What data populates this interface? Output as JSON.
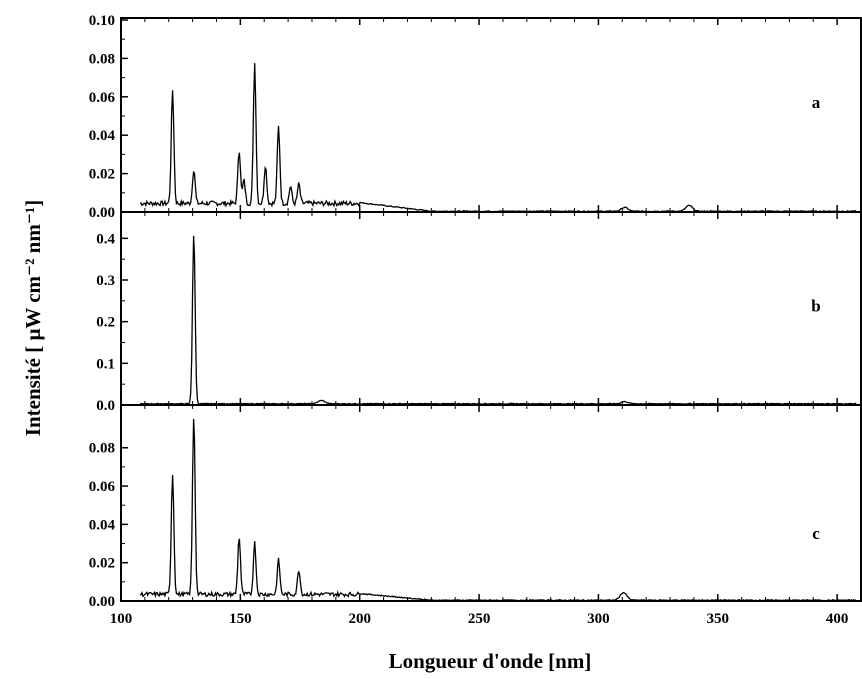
{
  "chart_data": {
    "type": "line",
    "xlabel": "Longueur d'onde [nm]",
    "ylabel": "Intensité [ μW cm⁻² nm⁻¹]",
    "xlim": [
      100,
      410
    ],
    "x_ticks": [
      "100",
      "150",
      "200",
      "250",
      "300",
      "350",
      "400"
    ],
    "line_color": "#000000",
    "panels": [
      {
        "label": "a",
        "ylim": [
          0,
          0.1
        ],
        "y_ticks": [
          "0.00",
          "0.02",
          "0.04",
          "0.06",
          "0.08",
          "0.10"
        ],
        "peaks": [
          {
            "x": 121.6,
            "y": 0.059
          },
          {
            "x": 130.5,
            "y": 0.018
          },
          {
            "x": 149.5,
            "y": 0.028
          },
          {
            "x": 151.5,
            "y": 0.012
          },
          {
            "x": 156.0,
            "y": 0.073
          },
          {
            "x": 160.5,
            "y": 0.02
          },
          {
            "x": 166.0,
            "y": 0.04
          },
          {
            "x": 171.0,
            "y": 0.009
          },
          {
            "x": 174.5,
            "y": 0.01
          },
          {
            "x": 311.0,
            "y": 0.002
          },
          {
            "x": 338.0,
            "y": 0.003
          }
        ]
      },
      {
        "label": "b",
        "ylim": [
          0,
          0.42
        ],
        "y_ticks": [
          "0.0",
          "0.1",
          "0.2",
          "0.3",
          "0.4"
        ],
        "peaks": [
          {
            "x": 130.5,
            "y": 0.41
          },
          {
            "x": 184.0,
            "y": 0.008
          },
          {
            "x": 311.0,
            "y": 0.005
          }
        ]
      },
      {
        "label": "c",
        "ylim": [
          0,
          0.095
        ],
        "y_ticks": [
          "0.00",
          "0.02",
          "0.04",
          "0.06",
          "0.08"
        ],
        "peaks": [
          {
            "x": 121.6,
            "y": 0.063
          },
          {
            "x": 130.5,
            "y": 0.094
          },
          {
            "x": 149.5,
            "y": 0.03
          },
          {
            "x": 156.0,
            "y": 0.027
          },
          {
            "x": 166.0,
            "y": 0.018
          },
          {
            "x": 174.5,
            "y": 0.013
          },
          {
            "x": 310.5,
            "y": 0.004
          }
        ]
      }
    ]
  }
}
